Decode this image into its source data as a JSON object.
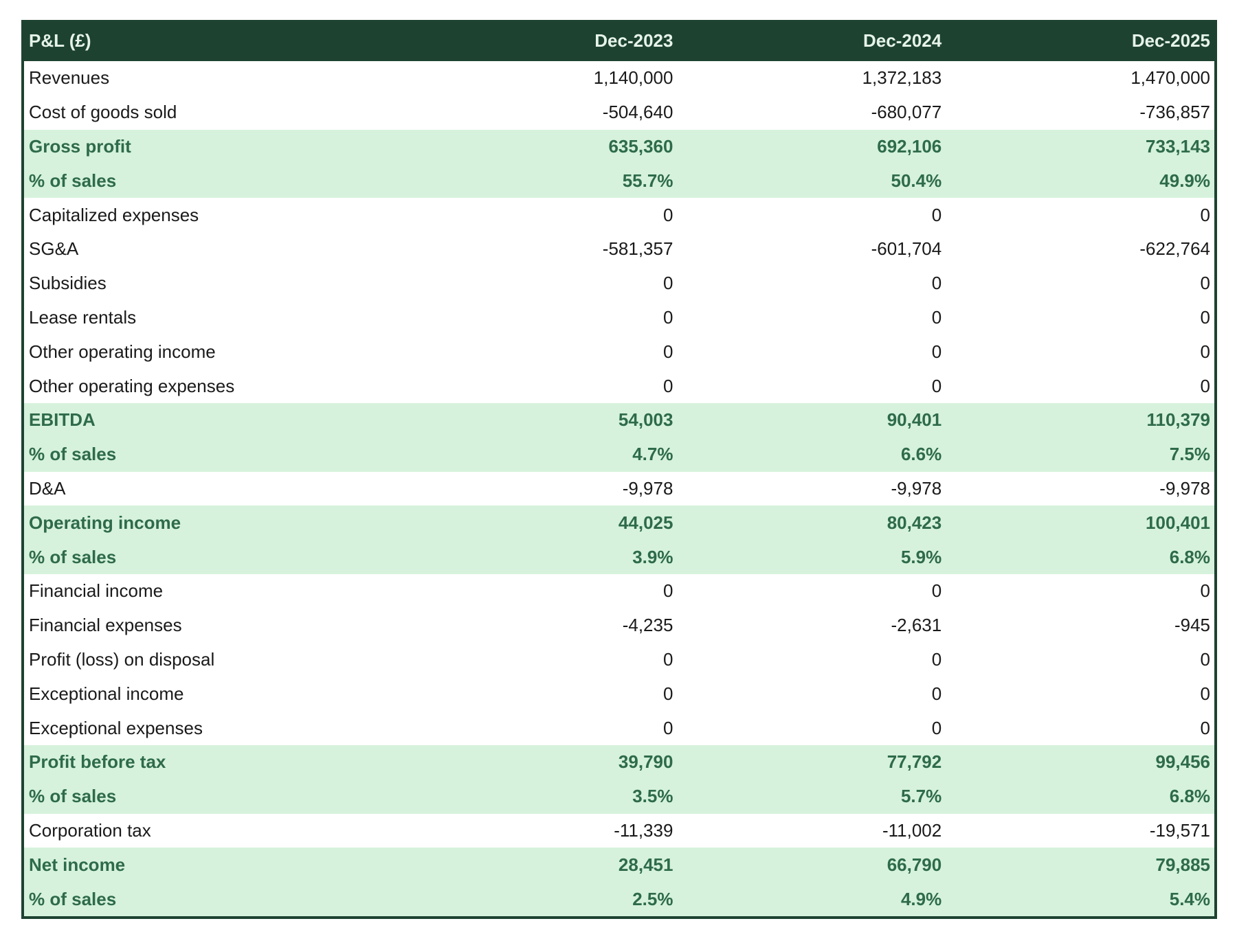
{
  "header": {
    "title": "P&L (£)",
    "columns": [
      "Dec-2023",
      "Dec-2024",
      "Dec-2025"
    ]
  },
  "colors": {
    "header_bg": "#1d4330",
    "highlight_bg": "#d6f2dc",
    "highlight_text": "#2e6b4a"
  },
  "rows": [
    {
      "label": "Revenues",
      "values": [
        "1,140,000",
        "1,372,183",
        "1,470,000"
      ],
      "highlight": false
    },
    {
      "label": "Cost of goods sold",
      "values": [
        "-504,640",
        "-680,077",
        "-736,857"
      ],
      "highlight": false
    },
    {
      "label": "Gross profit",
      "values": [
        "635,360",
        "692,106",
        "733,143"
      ],
      "highlight": true
    },
    {
      "label": "% of sales",
      "values": [
        "55.7%",
        "50.4%",
        "49.9%"
      ],
      "highlight": true
    },
    {
      "label": "Capitalized expenses",
      "values": [
        "0",
        "0",
        "0"
      ],
      "highlight": false
    },
    {
      "label": "SG&A",
      "values": [
        "-581,357",
        "-601,704",
        "-622,764"
      ],
      "highlight": false
    },
    {
      "label": "Subsidies",
      "values": [
        "0",
        "0",
        "0"
      ],
      "highlight": false
    },
    {
      "label": "Lease rentals",
      "values": [
        "0",
        "0",
        "0"
      ],
      "highlight": false
    },
    {
      "label": "Other operating income",
      "values": [
        "0",
        "0",
        "0"
      ],
      "highlight": false
    },
    {
      "label": "Other operating expenses",
      "values": [
        "0",
        "0",
        "0"
      ],
      "highlight": false
    },
    {
      "label": "EBITDA",
      "values": [
        "54,003",
        "90,401",
        "110,379"
      ],
      "highlight": true
    },
    {
      "label": "% of sales",
      "values": [
        "4.7%",
        "6.6%",
        "7.5%"
      ],
      "highlight": true
    },
    {
      "label": "D&A",
      "values": [
        "-9,978",
        "-9,978",
        "-9,978"
      ],
      "highlight": false
    },
    {
      "label": "Operating income",
      "values": [
        "44,025",
        "80,423",
        "100,401"
      ],
      "highlight": true
    },
    {
      "label": "% of sales",
      "values": [
        "3.9%",
        "5.9%",
        "6.8%"
      ],
      "highlight": true
    },
    {
      "label": "Financial income",
      "values": [
        "0",
        "0",
        "0"
      ],
      "highlight": false
    },
    {
      "label": "Financial expenses",
      "values": [
        "-4,235",
        "-2,631",
        "-945"
      ],
      "highlight": false
    },
    {
      "label": "Profit (loss) on disposal",
      "values": [
        "0",
        "0",
        "0"
      ],
      "highlight": false
    },
    {
      "label": "Exceptional income",
      "values": [
        "0",
        "0",
        "0"
      ],
      "highlight": false
    },
    {
      "label": "Exceptional expenses",
      "values": [
        "0",
        "0",
        "0"
      ],
      "highlight": false
    },
    {
      "label": "Profit before tax",
      "values": [
        "39,790",
        "77,792",
        "99,456"
      ],
      "highlight": true
    },
    {
      "label": "% of sales",
      "values": [
        "3.5%",
        "5.7%",
        "6.8%"
      ],
      "highlight": true
    },
    {
      "label": "Corporation tax",
      "values": [
        "-11,339",
        "-11,002",
        "-19,571"
      ],
      "highlight": false
    },
    {
      "label": "Net income",
      "values": [
        "28,451",
        "66,790",
        "79,885"
      ],
      "highlight": true
    },
    {
      "label": "% of sales",
      "values": [
        "2.5%",
        "4.9%",
        "5.4%"
      ],
      "highlight": true
    }
  ]
}
